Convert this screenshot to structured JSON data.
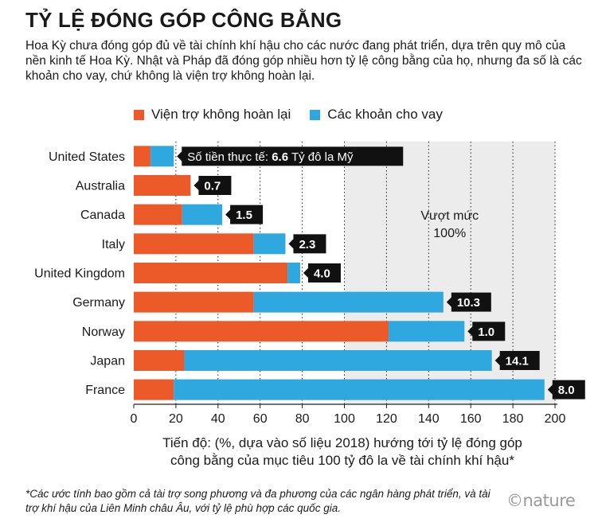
{
  "title": "TỶ LỆ ĐÓNG GÓP CÔNG BẰNG",
  "subtitle": "Hoa Kỳ chưa đóng góp đủ về tài chính khí hậu cho các nước đang phát triển, dựa trên quy mô của nền kinh tế Hoa Kỳ. Nhật và Pháp đã đóng góp nhiều hơn tỷ lệ công bằng của họ, nhưng đa số là các khoản cho vay, chứ không là viện trợ không hoàn lại.",
  "colors": {
    "grants": "#eb5a28",
    "loans": "#2fa8df",
    "shade": "#ececec",
    "label_bg": "#111111"
  },
  "chart_data": {
    "type": "bar",
    "orientation": "horizontal",
    "stacked": true,
    "categories": [
      "United States",
      "Australia",
      "Canada",
      "Italy",
      "United Kingdom",
      "Germany",
      "Norway",
      "Japan",
      "France"
    ],
    "series": [
      {
        "name": "Viện trợ không hoàn lại",
        "values": [
          8,
          27,
          23,
          57,
          73,
          57,
          121,
          24,
          19
        ]
      },
      {
        "name": "Các khoản cho vay",
        "values": [
          11,
          0,
          19,
          15,
          6,
          90,
          36,
          146,
          176
        ]
      }
    ],
    "data_labels": [
      "6.6",
      "0.7",
      "1.5",
      "2.3",
      "4.0",
      "10.3",
      "1.0",
      "14.1",
      "8.0"
    ],
    "first_label_prefix": "Số tiền thực tế: ",
    "first_label_suffix": " Tỷ đô la Mỹ",
    "xlim": [
      0,
      200
    ],
    "xticks": [
      0,
      20,
      40,
      60,
      80,
      100,
      120,
      140,
      160,
      180,
      200
    ],
    "xlabel": "Tiến độ: (%, dựa vào số liệu 2018) hướng tới tỷ lệ đóng góp công bằng của mục tiêu 100 tỷ đô la về tài chính khí hậu*",
    "shaded_region": {
      "from": 100,
      "to": 200,
      "label": "Vượt mức 100%"
    },
    "grid": true,
    "legend_position": "top"
  },
  "xlabel_line1": "Tiến độ: (%, dựa vào số liệu 2018) hướng tới tỷ lệ đóng góp",
  "xlabel_line2": "công bằng của mục tiêu 100 tỷ đô la về tài chính khí hậu*",
  "shade_label_line1": "Vượt mức",
  "shade_label_line2": "100%",
  "footnote": "*Các ước tính bao gồm cả tài trợ song phương và đa phương của các ngân hàng phát triển, và tài trợ khí hậu của Liên Minh châu Âu, với tỷ lệ phù hợp các quốc gia.",
  "logo": "©nature"
}
